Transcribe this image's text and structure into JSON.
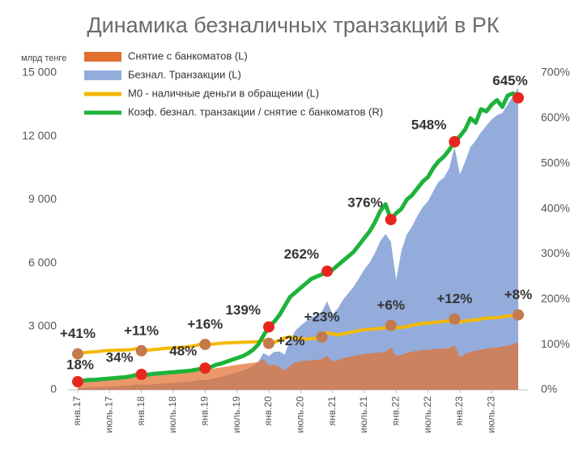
{
  "chart_data": {
    "type": "combo",
    "title": "Динамика безналичных транзакций в РК",
    "y_label": "млрд тенге",
    "categories": [
      "янв.17",
      null,
      null,
      null,
      null,
      null,
      "июль.17",
      null,
      null,
      null,
      null,
      null,
      "янв.18",
      null,
      null,
      null,
      null,
      null,
      "июль.18",
      null,
      null,
      null,
      null,
      null,
      "янв.19",
      null,
      null,
      null,
      null,
      null,
      "июль.19",
      null,
      null,
      null,
      null,
      null,
      "янв.20",
      null,
      null,
      null,
      null,
      null,
      "июль.20",
      null,
      null,
      null,
      null,
      null,
      "янв.21",
      null,
      null,
      null,
      null,
      null,
      "июль.21",
      null,
      null,
      null,
      null,
      null,
      "янв.22",
      null,
      null,
      null,
      null,
      null,
      "июль.22",
      null,
      null,
      null,
      null,
      null,
      "янв.23",
      null,
      null,
      null,
      null,
      null,
      "июль.23",
      null,
      null,
      null,
      null,
      null
    ],
    "ylim": [
      0,
      15000
    ],
    "yticks": [
      0,
      {
        "value": 3000,
        "label": "3 000"
      },
      {
        "value": 6000,
        "label": "6 000"
      },
      {
        "value": 9000,
        "label": "9 000"
      },
      {
        "value": 12000,
        "label": "12 000"
      },
      {
        "value": 15000,
        "label": "15 000"
      }
    ],
    "y2lim": [
      0,
      700
    ],
    "y2ticks": [
      {
        "value": 0,
        "label": "0%"
      },
      {
        "value": 100,
        "label": "100%"
      },
      {
        "value": 200,
        "label": "200%"
      },
      {
        "value": 300,
        "label": "300%"
      },
      {
        "value": 400,
        "label": "400%"
      },
      {
        "value": 500,
        "label": "500%"
      },
      {
        "value": 600,
        "label": "600%"
      },
      {
        "value": 700,
        "label": "700%"
      }
    ],
    "legend": "top-left",
    "series": [
      {
        "name": "Безнал. Транзакции (L)",
        "type": "area",
        "color": "#93acdb",
        "values": [
          81,
          96,
          114,
          121,
          133,
          144,
          155,
          166,
          178,
          190,
          210,
          251,
          245,
          244,
          270,
          288,
          303,
          319,
          335,
          352,
          369,
          386,
          418,
          460,
          456,
          490,
          561,
          615,
          682,
          752,
          826,
          903,
          1000,
          1126,
          1320,
          1740,
          1599,
          1800,
          1815,
          1665,
          2358,
          2795,
          3038,
          3243,
          3430,
          3550,
          3698,
          4192,
          3578,
          3850,
          4275,
          4573,
          4880,
          5280,
          5695,
          6020,
          6475,
          7031,
          7380,
          7000,
          5200,
          6600,
          7350,
          7740,
          8233,
          8648,
          8930,
          9408,
          9848,
          10043,
          10494,
          11500,
          10200,
          10800,
          11500,
          11800,
          12200,
          12500,
          12800,
          13000,
          13100,
          13500,
          13900,
          14300
        ]
      },
      {
        "name": "Снятие с банкоматов (L)",
        "type": "area",
        "color": "#e2702f",
        "values": [
          450,
          480,
          520,
          550,
          580,
          600,
          620,
          640,
          660,
          680,
          700,
          760,
          720,
          740,
          770,
          800,
          820,
          840,
          860,
          880,
          900,
          920,
          950,
          1000,
          950,
          980,
          1020,
          1060,
          1100,
          1140,
          1180,
          1220,
          1250,
          1280,
          1320,
          1450,
          1150,
          1200,
          1100,
          900,
          1150,
          1300,
          1350,
          1380,
          1400,
          1420,
          1450,
          1600,
          1350,
          1400,
          1500,
          1550,
          1600,
          1650,
          1700,
          1720,
          1750,
          1780,
          1800,
          2000,
          1600,
          1650,
          1750,
          1800,
          1850,
          1880,
          1900,
          1920,
          1950,
          1950,
          1980,
          2100,
          1550,
          1700,
          1800,
          1850,
          1900,
          1950,
          2000,
          2000,
          2050,
          2100,
          2150,
          2250
        ]
      },
      {
        "name": "М0 - наличные деньги в обращении (L)",
        "type": "line",
        "color": "#f5b800",
        "values": [
          1700,
          1750,
          1780,
          1800,
          1820,
          1850,
          1860,
          1870,
          1880,
          1890,
          1900,
          1950,
          1850,
          1870,
          1900,
          1920,
          1950,
          1970,
          1990,
          2000,
          2020,
          2050,
          2080,
          2150,
          2150,
          2150,
          2180,
          2200,
          2220,
          2230,
          2240,
          2250,
          2260,
          2270,
          2280,
          2350,
          2200,
          2250,
          2350,
          2450,
          2500,
          2450,
          2420,
          2400,
          2420,
          2450,
          2500,
          2700,
          2650,
          2600,
          2650,
          2700,
          2750,
          2800,
          2850,
          2870,
          2880,
          2900,
          2950,
          3050,
          2950,
          2950,
          3000,
          3050,
          3100,
          3150,
          3150,
          3200,
          3200,
          3250,
          3250,
          3350,
          3200,
          3250,
          3300,
          3300,
          3350,
          3400,
          3400,
          3420,
          3450,
          3500,
          3500,
          3550
        ]
      },
      {
        "name": "Коэф. безнал. транзакции / снятие с банкоматов (R)",
        "type": "line",
        "axis": "y2",
        "color": "#1db33a",
        "marker_color": "#e8261f",
        "values": [
          18,
          20,
          22,
          22,
          23,
          24,
          25,
          26,
          27,
          28,
          30,
          33,
          34,
          33,
          35,
          36,
          37,
          38,
          39,
          40,
          41,
          42,
          44,
          46,
          48,
          50,
          55,
          58,
          62,
          66,
          70,
          74,
          80,
          88,
          100,
          120,
          139,
          150,
          165,
          185,
          205,
          215,
          225,
          235,
          245,
          250,
          255,
          262,
          265,
          275,
          285,
          295,
          305,
          320,
          335,
          350,
          370,
          395,
          410,
          376,
          390,
          400,
          420,
          430,
          445,
          460,
          470,
          490,
          505,
          515,
          530,
          548,
          560,
          575,
          600,
          590,
          620,
          615,
          630,
          640,
          625,
          650,
          655,
          645
        ],
        "value_labels": [
          "18%",
          null,
          null,
          null,
          null,
          null,
          null,
          null,
          null,
          null,
          null,
          null,
          "34%",
          null,
          null,
          null,
          null,
          null,
          null,
          null,
          null,
          null,
          null,
          null,
          "48%",
          null,
          null,
          null,
          null,
          null,
          null,
          null,
          null,
          null,
          null,
          null,
          "139%",
          null,
          null,
          null,
          null,
          null,
          null,
          null,
          null,
          null,
          null,
          "262%",
          null,
          null,
          null,
          null,
          null,
          null,
          null,
          null,
          null,
          null,
          null,
          "376%",
          null,
          null,
          null,
          null,
          null,
          null,
          null,
          null,
          null,
          null,
          null,
          "548%",
          null,
          null,
          null,
          null,
          null,
          null,
          null,
          null,
          null,
          null,
          null,
          "645%"
        ]
      }
    ],
    "annotations": [
      {
        "text": "+41%",
        "series": 2,
        "point": 0
      },
      {
        "text": "+11%",
        "series": 2,
        "point": 12
      },
      {
        "text": "+16%",
        "series": 2,
        "point": 24
      },
      {
        "text": "+2%",
        "series": 2,
        "point": 36
      },
      {
        "text": "+23%",
        "series": 2,
        "point": 46
      },
      {
        "text": "+6%",
        "series": 2,
        "point": 59
      },
      {
        "text": "+12%",
        "series": 2,
        "point": 71
      },
      {
        "text": "+8%",
        "series": 2,
        "point": 83
      }
    ],
    "annotation_color": "#c47a4c"
  }
}
